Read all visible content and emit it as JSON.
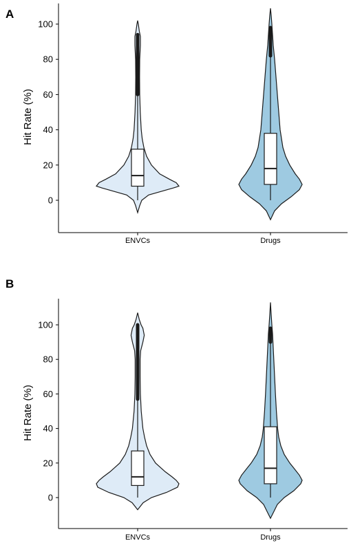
{
  "chart_data": [
    {
      "type": "violin",
      "panel_label": "A",
      "ylabel": "Hit Rate (%)",
      "xlabel": "",
      "ylim": [
        -18,
        112
      ],
      "yticks": [
        0,
        20,
        40,
        60,
        80,
        100
      ],
      "categories": [
        "ENVCs",
        "Drugs"
      ],
      "colors": [
        "#deebf7",
        "#9ecae1"
      ],
      "violins": [
        {
          "name": "ENVCs",
          "fill": "#deebf7",
          "min": -7,
          "max": 102,
          "q1": 8,
          "median": 14,
          "q3": 29,
          "whisker_low": 0,
          "whisker_high": 60,
          "outliers_from": 60,
          "outliers_to": 94,
          "density": [
            [
              -7,
              0
            ],
            [
              -3,
              1.5
            ],
            [
              0,
              3
            ],
            [
              3,
              8
            ],
            [
              5,
              17
            ],
            [
              7,
              26
            ],
            [
              8,
              30
            ],
            [
              10,
              28
            ],
            [
              12,
              23
            ],
            [
              15,
              16
            ],
            [
              20,
              10
            ],
            [
              25,
              6.5
            ],
            [
              30,
              4.5
            ],
            [
              35,
              3.3
            ],
            [
              40,
              2.6
            ],
            [
              50,
              1.9
            ],
            [
              60,
              1.5
            ],
            [
              70,
              1.4
            ],
            [
              80,
              1.5
            ],
            [
              88,
              2
            ],
            [
              93,
              2
            ],
            [
              96,
              1.2
            ],
            [
              100,
              0.5
            ],
            [
              102,
              0
            ]
          ]
        },
        {
          "name": "Drugs",
          "fill": "#9ecae1",
          "min": -11,
          "max": 109,
          "q1": 9,
          "median": 18,
          "q3": 38,
          "whisker_low": 0,
          "whisker_high": 82,
          "outliers_from": 82,
          "outliers_to": 98,
          "density": [
            [
              -11,
              0
            ],
            [
              -6,
              3
            ],
            [
              -2,
              8
            ],
            [
              2,
              15
            ],
            [
              6,
              21
            ],
            [
              9,
              23
            ],
            [
              12,
              21
            ],
            [
              15,
              18
            ],
            [
              20,
              14
            ],
            [
              25,
              11
            ],
            [
              30,
              9
            ],
            [
              35,
              8
            ],
            [
              40,
              7
            ],
            [
              50,
              6
            ],
            [
              60,
              5
            ],
            [
              70,
              4
            ],
            [
              80,
              3
            ],
            [
              88,
              2
            ],
            [
              94,
              1.5
            ],
            [
              100,
              1
            ],
            [
              105,
              0.5
            ],
            [
              109,
              0
            ]
          ]
        }
      ],
      "category_labels": [
        "ENVCs",
        "Drugs"
      ]
    },
    {
      "type": "violin",
      "panel_label": "B",
      "ylabel": "Hit Rate (%)",
      "xlabel": "",
      "ylim": [
        -18,
        112
      ],
      "yticks": [
        0,
        20,
        40,
        60,
        80,
        100
      ],
      "categories": [
        "ENVCs",
        "Drugs"
      ],
      "colors": [
        "#deebf7",
        "#9ecae1"
      ],
      "violins": [
        {
          "name": "ENVCs",
          "fill": "#deebf7",
          "min": -7,
          "max": 107,
          "q1": 7,
          "median": 12,
          "q3": 27,
          "whisker_low": 0,
          "whisker_high": 57,
          "outliers_from": 57,
          "outliers_to": 100,
          "density": [
            [
              -7,
              0
            ],
            [
              -3,
              4
            ],
            [
              0,
              10
            ],
            [
              3,
              21
            ],
            [
              6,
              29
            ],
            [
              8,
              30
            ],
            [
              10,
              28
            ],
            [
              12,
              25
            ],
            [
              15,
              20
            ],
            [
              20,
              13
            ],
            [
              25,
              9
            ],
            [
              30,
              6.5
            ],
            [
              35,
              5
            ],
            [
              40,
              3.8
            ],
            [
              50,
              2.6
            ],
            [
              60,
              2
            ],
            [
              70,
              1.8
            ],
            [
              80,
              1.8
            ],
            [
              85,
              2.2
            ],
            [
              90,
              3.8
            ],
            [
              94,
              4.8
            ],
            [
              98,
              3.8
            ],
            [
              100,
              2.5
            ],
            [
              103,
              1.2
            ],
            [
              107,
              0
            ]
          ]
        },
        {
          "name": "Drugs",
          "fill": "#9ecae1",
          "min": -12,
          "max": 113,
          "q1": 8,
          "median": 17,
          "q3": 41,
          "whisker_low": 0,
          "whisker_high": 90,
          "outliers_from": 90,
          "outliers_to": 98,
          "density": [
            [
              -12,
              0
            ],
            [
              -8,
              2.5
            ],
            [
              -4,
              5
            ],
            [
              0,
              10
            ],
            [
              4,
              17
            ],
            [
              8,
              22
            ],
            [
              10,
              23
            ],
            [
              13,
              21
            ],
            [
              17,
              17
            ],
            [
              20,
              14
            ],
            [
              25,
              10
            ],
            [
              30,
              7.5
            ],
            [
              35,
              6
            ],
            [
              40,
              5.2
            ],
            [
              50,
              4.3
            ],
            [
              60,
              3.6
            ],
            [
              70,
              3
            ],
            [
              80,
              2.4
            ],
            [
              90,
              1.8
            ],
            [
              95,
              1.5
            ],
            [
              100,
              1
            ],
            [
              106,
              0.5
            ],
            [
              113,
              0
            ]
          ]
        }
      ],
      "category_labels": [
        "ENVCs",
        "Drugs"
      ]
    }
  ]
}
